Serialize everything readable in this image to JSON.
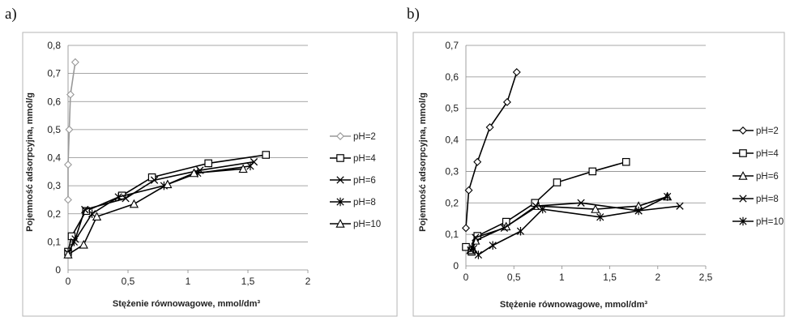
{
  "chart_data": [
    {
      "panel_label": "a)",
      "type": "line",
      "xlabel": "Stężenie równowagowe, mmol/dm³",
      "ylabel": "Pojemność adsorpcyjna, mmol/g",
      "xlim": [
        0,
        2
      ],
      "ylim": [
        0,
        0.8
      ],
      "x_ticks": [
        "0",
        "0,5",
        "1",
        "1,5",
        "2"
      ],
      "y_ticks": [
        "0",
        "0,1",
        "0,2",
        "0,3",
        "0,4",
        "0,5",
        "0,6",
        "0,7",
        "0,8"
      ],
      "grid": "horizontal",
      "legend_position": "right",
      "series": [
        {
          "name": "pH=2",
          "marker": "diamond",
          "color": "#999999",
          "points": [
            [
              0.0,
              0.25
            ],
            [
              0.0,
              0.375
            ],
            [
              0.01,
              0.5
            ],
            [
              0.02,
              0.625
            ],
            [
              0.06,
              0.74
            ]
          ]
        },
        {
          "name": "pH=4",
          "marker": "square",
          "color": "#000000",
          "points": [
            [
              0.0,
              0.065
            ],
            [
              0.03,
              0.12
            ],
            [
              0.15,
              0.21
            ],
            [
              0.45,
              0.265
            ],
            [
              0.7,
              0.33
            ],
            [
              1.17,
              0.38
            ],
            [
              1.65,
              0.41
            ]
          ]
        },
        {
          "name": "pH=6",
          "marker": "x",
          "color": "#000000",
          "points": [
            [
              0.0,
              0.06
            ],
            [
              0.06,
              0.11
            ],
            [
              0.14,
              0.215
            ],
            [
              0.48,
              0.255
            ],
            [
              0.72,
              0.32
            ],
            [
              1.1,
              0.355
            ],
            [
              1.55,
              0.385
            ]
          ]
        },
        {
          "name": "pH=8",
          "marker": "star",
          "color": "#000000",
          "points": [
            [
              0.0,
              0.06
            ],
            [
              0.05,
              0.1
            ],
            [
              0.2,
              0.2
            ],
            [
              0.42,
              0.26
            ],
            [
              0.8,
              0.3
            ],
            [
              1.08,
              0.345
            ],
            [
              1.52,
              0.37
            ]
          ]
        },
        {
          "name": "pH=10",
          "marker": "triangle",
          "color": "#000000",
          "points": [
            [
              0.0,
              0.055
            ],
            [
              0.13,
              0.09
            ],
            [
              0.24,
              0.19
            ],
            [
              0.55,
              0.235
            ],
            [
              0.83,
              0.305
            ],
            [
              1.05,
              0.345
            ],
            [
              1.46,
              0.36
            ]
          ]
        }
      ]
    },
    {
      "panel_label": "b)",
      "type": "line",
      "xlabel": "Stężenie równowagowe, mmol/dm³",
      "ylabel": "Pojemność adsorpcyjna, mmol/g",
      "xlim": [
        0,
        2.5
      ],
      "ylim": [
        0,
        0.7
      ],
      "x_ticks": [
        "0",
        "0,5",
        "1",
        "1,5",
        "2",
        "2,5"
      ],
      "y_ticks": [
        "0",
        "0,1",
        "0,2",
        "0,3",
        "0,4",
        "0,5",
        "0,6",
        "0,7"
      ],
      "grid": "horizontal",
      "legend_position": "right",
      "series": [
        {
          "name": "pH=2",
          "marker": "diamond",
          "color": "#000000",
          "points": [
            [
              0.0,
              0.12
            ],
            [
              0.03,
              0.24
            ],
            [
              0.12,
              0.33
            ],
            [
              0.25,
              0.44
            ],
            [
              0.43,
              0.52
            ],
            [
              0.53,
              0.615
            ]
          ]
        },
        {
          "name": "pH=4",
          "marker": "square",
          "color": "#000000",
          "points": [
            [
              0.0,
              0.06
            ],
            [
              0.06,
              0.045
            ],
            [
              0.12,
              0.095
            ],
            [
              0.42,
              0.14
            ],
            [
              0.72,
              0.2
            ],
            [
              0.95,
              0.265
            ],
            [
              1.32,
              0.3
            ],
            [
              1.67,
              0.33
            ]
          ]
        },
        {
          "name": "pH=6",
          "marker": "triangle",
          "color": "#000000",
          "points": [
            [
              0.05,
              0.05
            ],
            [
              0.1,
              0.08
            ],
            [
              0.42,
              0.125
            ],
            [
              0.75,
              0.19
            ],
            [
              1.35,
              0.18
            ],
            [
              1.8,
              0.19
            ],
            [
              2.1,
              0.22
            ]
          ]
        },
        {
          "name": "pH=8",
          "marker": "x",
          "color": "#000000",
          "points": [
            [
              0.05,
              0.05
            ],
            [
              0.1,
              0.09
            ],
            [
              0.4,
              0.12
            ],
            [
              0.73,
              0.19
            ],
            [
              1.2,
              0.2
            ],
            [
              1.8,
              0.175
            ],
            [
              2.23,
              0.19
            ]
          ]
        },
        {
          "name": "pH=10",
          "marker": "star",
          "color": "#000000",
          "points": [
            [
              0.08,
              0.055
            ],
            [
              0.13,
              0.035
            ],
            [
              0.28,
              0.065
            ],
            [
              0.57,
              0.11
            ],
            [
              0.8,
              0.18
            ],
            [
              1.4,
              0.155
            ],
            [
              1.8,
              0.175
            ],
            [
              2.1,
              0.22
            ]
          ]
        }
      ]
    }
  ]
}
